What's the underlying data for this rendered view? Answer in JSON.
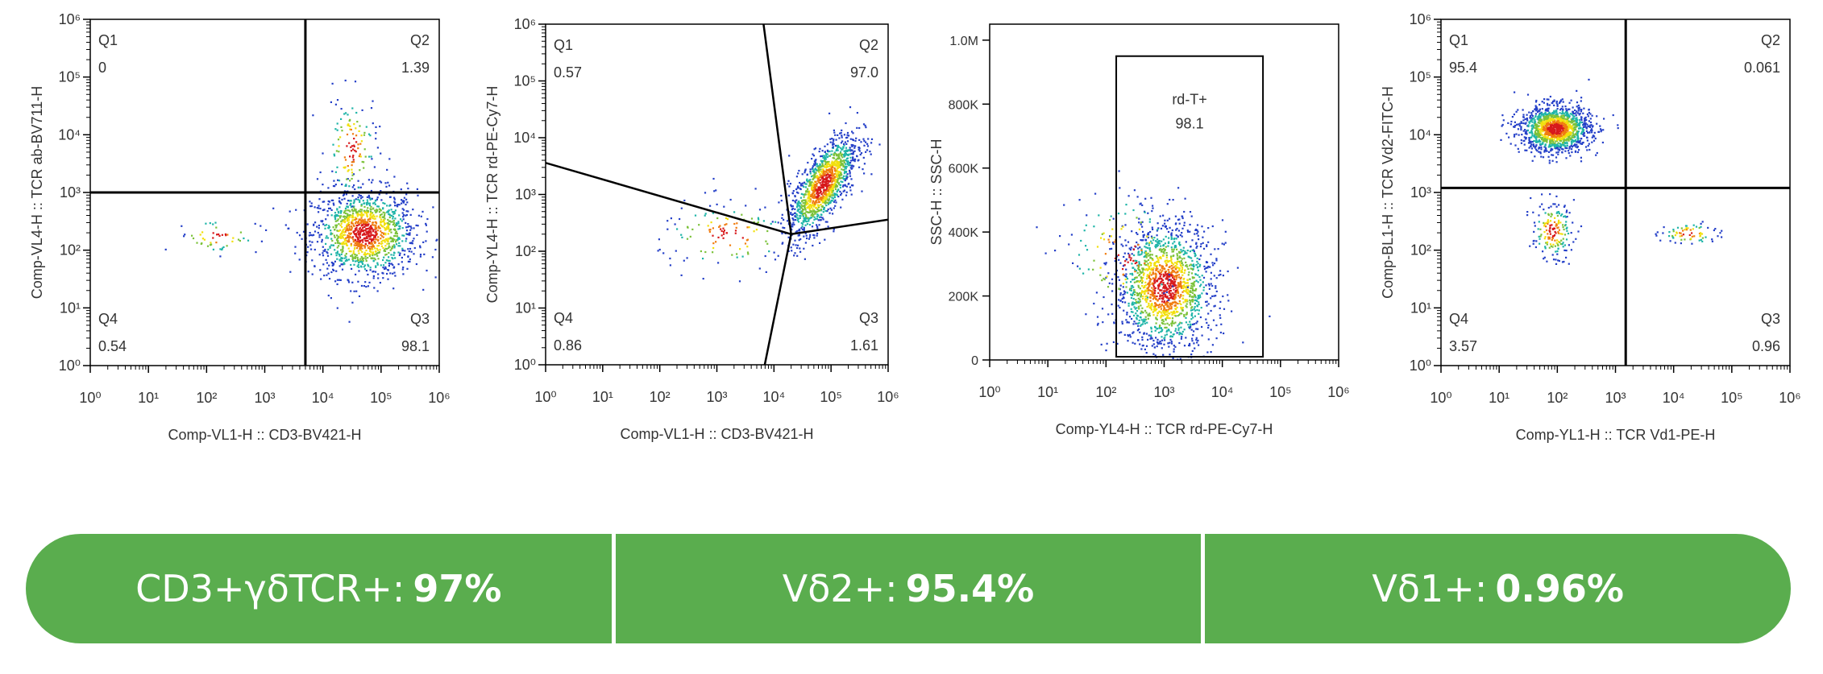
{
  "chart_data": [
    {
      "type": "scatter",
      "subtype": "flow-cytometry-quadrant",
      "xlabel": "Comp-VL1-H :: CD3-BV421-H",
      "ylabel": "Comp-VL4-H :: TCR ab-BV711-H",
      "xscale": "log",
      "yscale": "log",
      "xlim": [
        1,
        1000000
      ],
      "ylim": [
        1,
        1000000
      ],
      "gate": {
        "kind": "quadrant",
        "x": 5000,
        "y": 1000
      },
      "regions": [
        {
          "name": "Q1",
          "value": "0",
          "corner": "top-left"
        },
        {
          "name": "Q2",
          "value": "1.39",
          "corner": "top-right"
        },
        {
          "name": "Q4",
          "value": "0.54",
          "corner": "bottom-left"
        },
        {
          "name": "Q3",
          "value": "98.1",
          "corner": "bottom-right"
        }
      ],
      "clusters": [
        {
          "cx": 50000,
          "cy": 200,
          "sx": 0.45,
          "sy": 0.38,
          "n": 1300
        },
        {
          "cx": 30000,
          "cy": 6000,
          "sx": 0.22,
          "sy": 0.45,
          "n": 130
        },
        {
          "cx": 150,
          "cy": 180,
          "sx": 0.35,
          "sy": 0.15,
          "n": 50
        }
      ]
    },
    {
      "type": "scatter",
      "subtype": "flow-cytometry-quadrant",
      "xlabel": "Comp-VL1-H :: CD3-BV421-H",
      "ylabel": "Comp-YL4-H :: TCR rd-PE-Cy7-H",
      "xscale": "log",
      "yscale": "log",
      "xlim": [
        1,
        1000000
      ],
      "ylim": [
        1,
        1000000
      ],
      "gate": {
        "kind": "spider",
        "center": [
          20000,
          200
        ],
        "ends": [
          [
            6000,
            2000000
          ],
          [
            2000000,
            400
          ],
          [
            6000,
            0.5
          ],
          [
            0.7,
            4000
          ]
        ]
      },
      "regions": [
        {
          "name": "Q1",
          "value": "0.57",
          "corner": "top-left"
        },
        {
          "name": "Q2",
          "value": "97.0",
          "corner": "top-right"
        },
        {
          "name": "Q4",
          "value": "0.86",
          "corner": "bottom-left"
        },
        {
          "name": "Q3",
          "value": "1.61",
          "corner": "bottom-right"
        }
      ],
      "clusters": [
        {
          "cx": 70000,
          "cy": 1500,
          "sx": 0.3,
          "sy": 0.45,
          "n": 1300,
          "rho": 0.7
        },
        {
          "cx": 1500,
          "cy": 200,
          "sx": 0.6,
          "sy": 0.3,
          "n": 120
        }
      ]
    },
    {
      "type": "scatter",
      "subtype": "flow-cytometry-gate",
      "xlabel": "Comp-YL4-H :: TCR rd-PE-Cy7-H",
      "ylabel": "SSC-H :: SSC-H",
      "xscale": "log",
      "yscale": "linear",
      "xlim": [
        1,
        1000000
      ],
      "ylim": [
        0,
        1050000
      ],
      "ytick_labels": [
        {
          "v": 0,
          "label": "0"
        },
        {
          "v": 200000,
          "label": "200K"
        },
        {
          "v": 400000,
          "label": "400K"
        },
        {
          "v": 600000,
          "label": "600K"
        },
        {
          "v": 800000,
          "label": "800K"
        },
        {
          "v": 1000000,
          "label": "1.0M"
        }
      ],
      "gate": {
        "kind": "rect",
        "name": "rd-T+",
        "value": "98.1",
        "x0": 150,
        "x1": 50000,
        "y0": 10000,
        "y1": 950000
      },
      "clusters": [
        {
          "cx": 1000,
          "cy": 230000,
          "sx": 0.42,
          "sy": 0.48,
          "n": 1600,
          "lineary": true,
          "ysd": 100000
        },
        {
          "cx": 200,
          "cy": 330000,
          "sx": 0.5,
          "sy": 0.6,
          "n": 120,
          "lineary": true,
          "ysd": 100000
        }
      ]
    },
    {
      "type": "scatter",
      "subtype": "flow-cytometry-quadrant",
      "xlabel": "Comp-YL1-H :: TCR Vd1-PE-H",
      "ylabel": "Comp-BL1-H :: TCR Vd2-FITC-H",
      "xscale": "log",
      "yscale": "log",
      "xlim": [
        1,
        1000000
      ],
      "ylim": [
        1,
        1000000
      ],
      "gate": {
        "kind": "quadrant",
        "x": 1500,
        "y": 1200
      },
      "regions": [
        {
          "name": "Q1",
          "value": "95.4",
          "corner": "top-left"
        },
        {
          "name": "Q2",
          "value": "0.061",
          "corner": "top-right"
        },
        {
          "name": "Q4",
          "value": "3.57",
          "corner": "bottom-left"
        },
        {
          "name": "Q3",
          "value": "0.96",
          "corner": "bottom-right"
        }
      ],
      "clusters": [
        {
          "cx": 90,
          "cy": 13000,
          "sx": 0.3,
          "sy": 0.2,
          "n": 1400
        },
        {
          "cx": 80,
          "cy": 220,
          "sx": 0.18,
          "sy": 0.25,
          "n": 180
        },
        {
          "cx": 18000,
          "cy": 200,
          "sx": 0.25,
          "sy": 0.1,
          "n": 70
        }
      ]
    }
  ],
  "summary": [
    {
      "label": "CD3+γδTCR+:",
      "value": "97%"
    },
    {
      "label": "Vδ2+:",
      "value": "95.4%"
    },
    {
      "label": "Vδ1+:",
      "value": "0.96%"
    }
  ],
  "colors": {
    "summary_bg": "#5aad4e",
    "summary_text": "#ffffff",
    "axis": "#000000"
  }
}
